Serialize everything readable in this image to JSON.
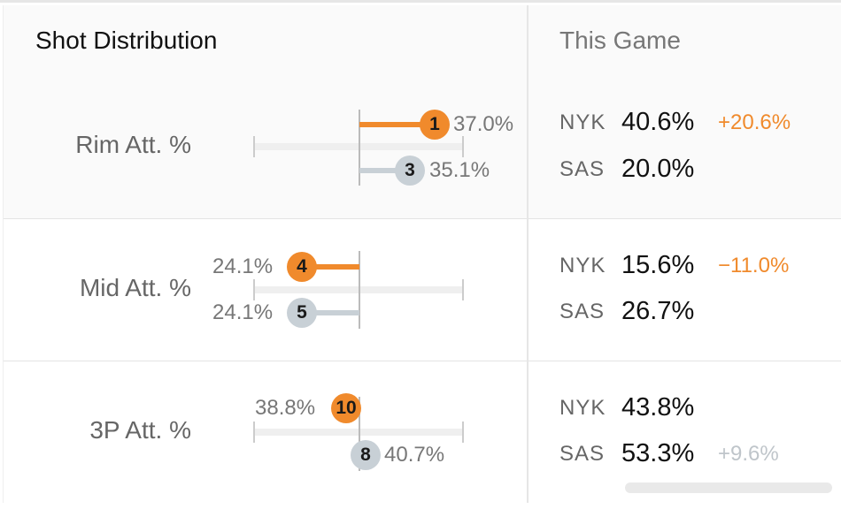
{
  "header": {
    "title": "Shot Distribution",
    "column": "This Game"
  },
  "colors": {
    "nyk": "#f08a2c",
    "sas": "#c8d0d6",
    "positive": "#f08a2c",
    "muted": "#bfc5ca"
  },
  "rows": [
    {
      "label": "Rim Att. %",
      "nyk": {
        "rank": "1",
        "pct": "37.0%"
      },
      "sas": {
        "rank": "3",
        "pct": "35.1%"
      },
      "game": {
        "nyk_team": "NYK",
        "nyk_value": "40.6%",
        "sas_team": "SAS",
        "sas_value": "20.0%",
        "nyk_diff": "+20.6%",
        "sas_diff": ""
      }
    },
    {
      "label": "Mid Att. %",
      "nyk": {
        "rank": "4",
        "pct": "24.1%"
      },
      "sas": {
        "rank": "5",
        "pct": "24.1%"
      },
      "game": {
        "nyk_team": "NYK",
        "nyk_value": "15.6%",
        "sas_team": "SAS",
        "sas_value": "26.7%",
        "nyk_diff": "−11.0%",
        "sas_diff": ""
      }
    },
    {
      "label": "3P Att. %",
      "nyk": {
        "rank": "10",
        "pct": "38.8%"
      },
      "sas": {
        "rank": "8",
        "pct": "40.7%"
      },
      "game": {
        "nyk_team": "NYK",
        "nyk_value": "43.8%",
        "sas_team": "SAS",
        "sas_value": "53.3%",
        "nyk_diff": "",
        "sas_diff": "+9.6%"
      }
    }
  ]
}
